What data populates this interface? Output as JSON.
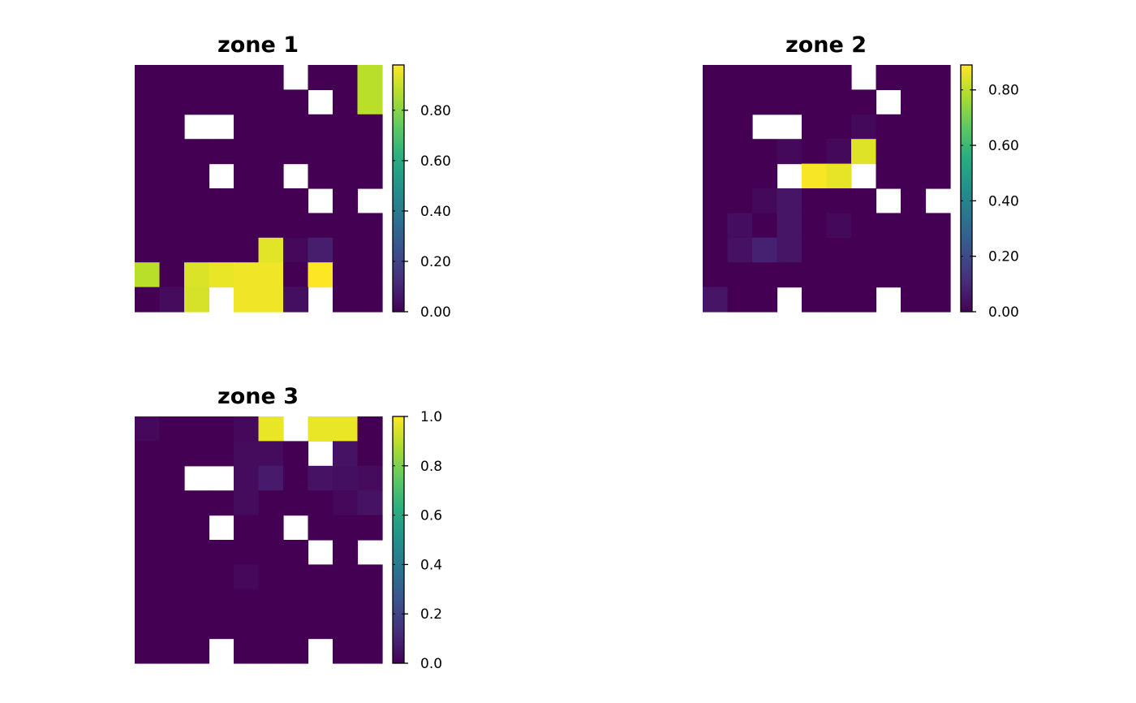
{
  "chart_data": [
    {
      "type": "heatmap",
      "title": "zone 1",
      "nrow": 10,
      "ncol": 10,
      "colorbar": {
        "min": 0,
        "max": 0.98,
        "ticks": [
          0,
          0.2,
          0.4,
          0.6,
          0.8
        ],
        "tick_labels": [
          "0.00",
          "0.20",
          "0.40",
          "0.60",
          "0.80"
        ]
      },
      "values": [
        [
          0,
          0,
          0,
          0,
          0,
          0,
          null,
          0,
          0,
          0.88
        ],
        [
          0,
          0,
          0,
          0,
          0,
          0,
          0,
          null,
          0,
          0.88
        ],
        [
          0,
          0,
          null,
          null,
          0,
          0,
          0,
          0,
          0,
          0
        ],
        [
          0,
          0,
          0,
          0,
          0,
          0,
          0,
          0,
          0,
          0
        ],
        [
          0,
          0,
          0,
          null,
          0,
          0,
          null,
          0,
          0,
          0
        ],
        [
          0,
          0,
          0,
          0,
          0,
          0,
          0,
          null,
          0,
          null
        ],
        [
          0,
          0,
          0,
          0,
          0,
          0,
          0,
          0,
          0,
          0
        ],
        [
          0,
          0,
          0,
          0,
          0,
          0.94,
          0.02,
          0.08,
          0,
          0
        ],
        [
          0.88,
          0,
          0.93,
          0.95,
          0.96,
          0.96,
          0,
          0.98,
          0,
          0
        ],
        [
          0,
          0.03,
          0.92,
          null,
          0.96,
          0.96,
          0.04,
          null,
          0,
          0
        ]
      ]
    },
    {
      "type": "heatmap",
      "title": "zone 2",
      "nrow": 10,
      "ncol": 10,
      "colorbar": {
        "min": 0,
        "max": 0.89,
        "ticks": [
          0,
          0.2,
          0.4,
          0.6,
          0.8
        ],
        "tick_labels": [
          "0.00",
          "0.20",
          "0.40",
          "0.60",
          "0.80"
        ]
      },
      "values": [
        [
          0,
          0,
          0,
          0,
          0,
          0,
          null,
          0,
          0,
          0
        ],
        [
          0,
          0,
          0,
          0,
          0,
          0,
          0,
          null,
          0,
          0
        ],
        [
          0,
          0,
          null,
          null,
          0,
          0,
          0.02,
          0,
          0,
          0
        ],
        [
          0,
          0,
          0,
          0.02,
          0,
          0.02,
          0.85,
          0,
          0,
          0
        ],
        [
          0,
          0,
          0,
          null,
          0.88,
          0.86,
          null,
          0,
          0,
          0
        ],
        [
          0,
          0,
          0.02,
          0.05,
          0,
          0,
          0,
          null,
          0,
          null
        ],
        [
          0,
          0.03,
          0,
          0.05,
          0,
          0.02,
          0,
          0,
          0,
          0
        ],
        [
          0,
          0.04,
          0.08,
          0.05,
          0,
          0,
          0,
          0,
          0,
          0
        ],
        [
          0,
          0,
          0,
          0,
          0,
          0,
          0,
          0,
          0,
          0
        ],
        [
          0.05,
          0,
          0,
          null,
          0,
          0,
          0,
          null,
          0,
          0
        ]
      ]
    },
    {
      "type": "heatmap",
      "title": "zone 3",
      "nrow": 10,
      "ncol": 10,
      "colorbar": {
        "min": 0,
        "max": 1,
        "ticks": [
          0,
          0.2,
          0.4,
          0.6,
          0.8,
          1
        ],
        "tick_labels": [
          "0.0",
          "0.2",
          "0.4",
          "0.6",
          "0.8",
          "1.0"
        ]
      },
      "values": [
        [
          0.02,
          0,
          0,
          0,
          0.02,
          0.97,
          null,
          0.97,
          0.97,
          0
        ],
        [
          0,
          0,
          0,
          0,
          0.03,
          0.03,
          0,
          null,
          0.05,
          0
        ],
        [
          0,
          0,
          null,
          null,
          0.03,
          0.07,
          0,
          0.05,
          0.04,
          0.03
        ],
        [
          0,
          0,
          0,
          0,
          0.03,
          0,
          0,
          0,
          0.02,
          0.05
        ],
        [
          0,
          0,
          0,
          null,
          0,
          0,
          null,
          0,
          0,
          0
        ],
        [
          0,
          0,
          0,
          0,
          0,
          0,
          0,
          null,
          0,
          null
        ],
        [
          0,
          0,
          0,
          0,
          0.02,
          0,
          0,
          0,
          0,
          0
        ],
        [
          0,
          0,
          0,
          0,
          0,
          0,
          0,
          0,
          0,
          0
        ],
        [
          0,
          0,
          0,
          0,
          0,
          0,
          0,
          0,
          0,
          0
        ],
        [
          0,
          0,
          0,
          null,
          0,
          0,
          0,
          null,
          0,
          0
        ]
      ]
    }
  ]
}
